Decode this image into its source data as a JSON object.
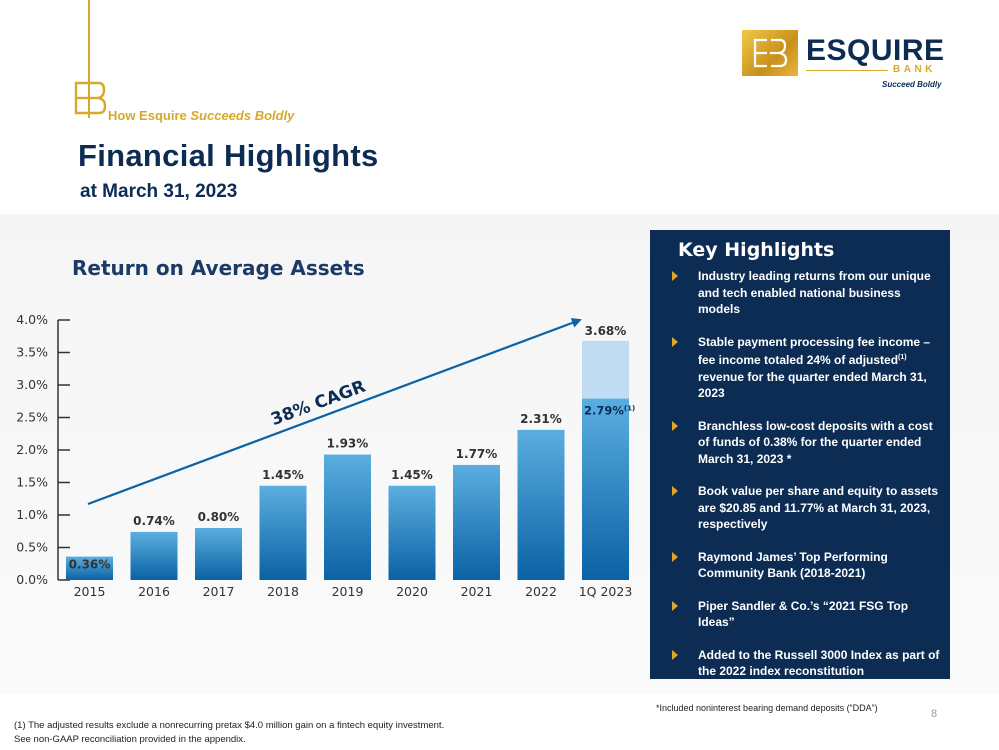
{
  "header": {
    "tagline_prefix": "How Esquire",
    "tagline_emphasis": "Succeeds Boldly",
    "title": "Financial Highlights",
    "subtitle": "at March 31, 2023"
  },
  "logo": {
    "word": "ESQUIRE",
    "bank": "BANK",
    "tagline": "Succeed Boldly",
    "color_gold": "#d6a92a",
    "color_navy": "#0c2c54"
  },
  "chart_data": {
    "type": "bar",
    "title": "Return on Average Assets",
    "xlabel": "",
    "ylabel": "",
    "categories": [
      "2015",
      "2016",
      "2017",
      "2018",
      "2019",
      "2020",
      "2021",
      "2022",
      "1Q 2023"
    ],
    "values": [
      0.36,
      0.74,
      0.8,
      1.45,
      1.93,
      1.45,
      1.77,
      2.31,
      3.68
    ],
    "data_labels": [
      "0.36%",
      "0.74%",
      "0.80%",
      "1.45%",
      "1.93%",
      "1.45%",
      "1.77%",
      "2.31%",
      "3.68%"
    ],
    "adjusted": {
      "category": "1Q 2023",
      "value": 2.79,
      "label": "2.79%",
      "footnote_mark": "(1)"
    },
    "ylim": [
      0,
      4.0
    ],
    "yticks": [
      0,
      0.5,
      1.0,
      1.5,
      2.0,
      2.5,
      3.0,
      3.5,
      4.0
    ],
    "ytick_labels": [
      "0.0%",
      "0.5%",
      "1.0%",
      "1.5%",
      "2.0%",
      "2.5%",
      "3.0%",
      "3.5%",
      "4.0%"
    ],
    "annotation": "38% CAGR",
    "grid": false,
    "bar_color_top": "#5aaee0",
    "bar_color_bottom": "#0b62a4",
    "bar_color_light": "#bfdcf2",
    "arrow_color": "#0b62a4"
  },
  "key_highlights": {
    "title": "Key Highlights",
    "items": [
      {
        "text": "Industry leading returns from our unique and tech enabled national business models"
      },
      {
        "pre": "Stable payment processing fee income – fee income totaled 24% of adjusted",
        "sup": "(1)",
        "post": " revenue for the quarter ended March 31, 2023"
      },
      {
        "text": "Branchless low-cost deposits with a cost of funds of 0.38% for the quarter ended March 31, 2023 *"
      },
      {
        "text": "Book value per share and equity to assets are $20.85 and 11.77% at March 31, 2023, respectively"
      },
      {
        "text": "Raymond James’ Top Performing Community Bank (2018-2021)"
      },
      {
        "text": "Piper Sandler & Co.’s “2021 FSG Top Ideas”"
      },
      {
        "text": "Added to the Russell 3000 Index as part of the 2022 index reconstitution"
      }
    ],
    "bullet_color": "#e0a52b",
    "panel_color": "#0c2c54"
  },
  "footnotes": {
    "dda": "*Included noninterest bearing demand deposits (“DDA”)",
    "page_number": "8",
    "line1": "(1) The adjusted results exclude a nonrecurring pretax $4.0 million gain on a fintech equity investment.",
    "line2": "See non-GAAP reconciliation provided in the appendix."
  }
}
